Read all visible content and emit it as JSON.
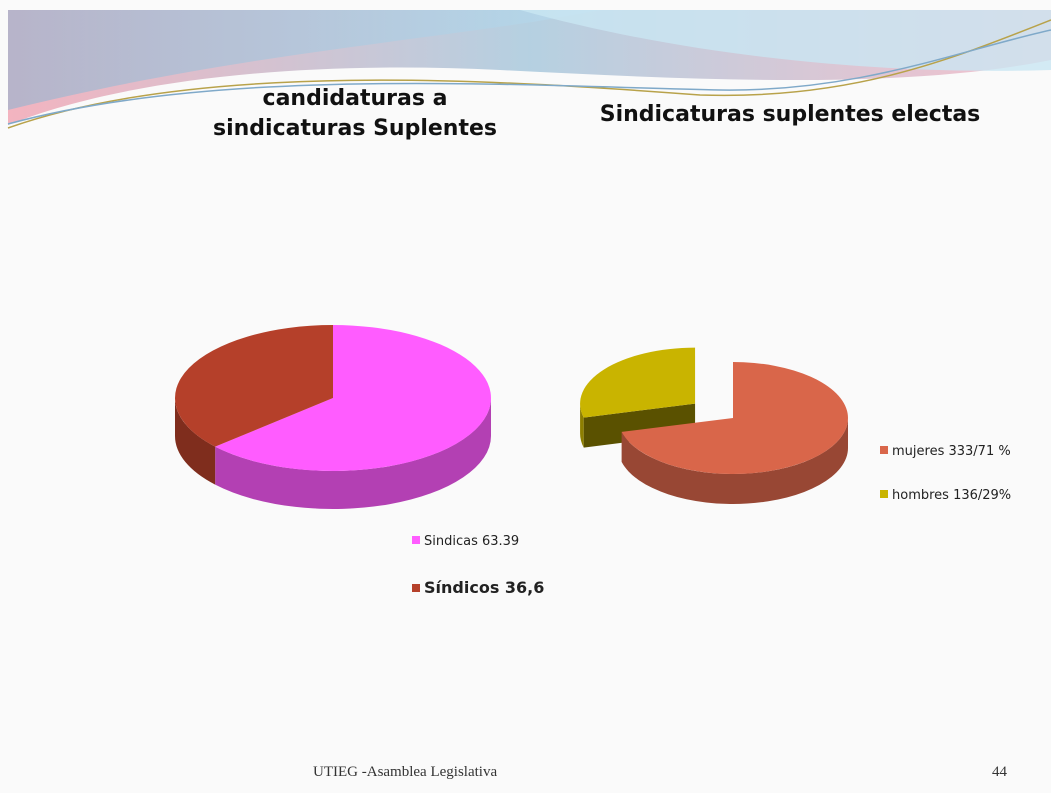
{
  "chart_data": [
    {
      "type": "pie",
      "title": "candidaturas a sindicaturas  Suplentes",
      "categories": [
        "Sindicas  63.39",
        "Síndicos 36,6"
      ],
      "values": [
        63.39,
        36.6
      ],
      "colors": [
        "#ff5cff",
        "#b5402a"
      ]
    },
    {
      "type": "pie",
      "title": "Sindicaturas  suplentes electas",
      "categories": [
        "mujeres  333/71 %",
        "hombres 136/29%"
      ],
      "values": [
        71,
        29
      ],
      "colors": [
        "#d9664a",
        "#c9b400"
      ],
      "exploded": [
        false,
        true
      ]
    }
  ],
  "footer": {
    "text": "UTIEG -Asamblea Legislativa",
    "page": "44"
  }
}
